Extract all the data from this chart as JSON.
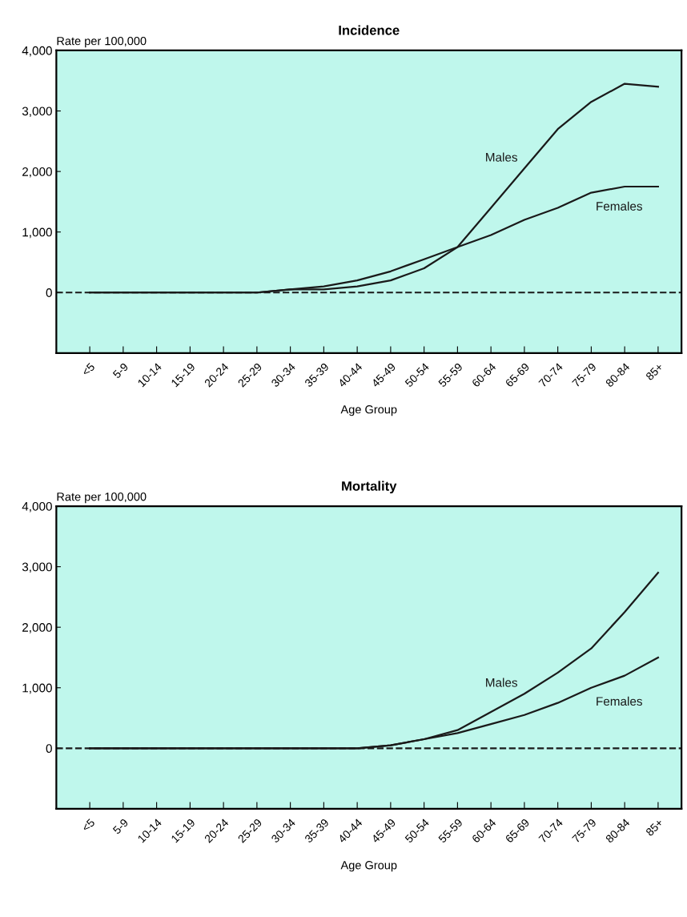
{
  "chart_data": [
    {
      "type": "line",
      "title": "Incidence",
      "ylabel": "Rate per 100,000",
      "xlabel": "Age Group",
      "categories": [
        "<5",
        "5-9",
        "10-14",
        "15-19",
        "20-24",
        "25-29",
        "30-34",
        "35-39",
        "40-44",
        "45-49",
        "50-54",
        "55-59",
        "60-64",
        "65-69",
        "70-74",
        "75-79",
        "80-84",
        "85+"
      ],
      "series": [
        {
          "name": "Males",
          "color": "#1a1a1a",
          "values": [
            0,
            0,
            0,
            0,
            0,
            0,
            50,
            50,
            100,
            200,
            400,
            750,
            1400,
            2050,
            2700,
            3150,
            3450,
            3400
          ]
        },
        {
          "name": "Females",
          "color": "#1a1a1a",
          "values": [
            0,
            0,
            0,
            0,
            0,
            0,
            50,
            100,
            200,
            350,
            550,
            750,
            950,
            1200,
            1400,
            1650,
            1750,
            1750
          ]
        }
      ],
      "ylim": [
        -1000,
        4000
      ],
      "yticks": [
        {
          "value": 0,
          "label": "0"
        },
        {
          "value": 1000,
          "label": "1,000"
        },
        {
          "value": 2000,
          "label": "2,000"
        },
        {
          "value": 3000,
          "label": "3,000"
        },
        {
          "value": 4000,
          "label": "4,000"
        }
      ],
      "ref_lines": [
        {
          "axis": "y",
          "value": 0,
          "label": null,
          "color": "#1a1a1a",
          "line_style": "dashed"
        }
      ],
      "grid": false,
      "legend": false,
      "marker": "none",
      "line_style": "solid"
    },
    {
      "type": "line",
      "title": "Mortality",
      "ylabel": "Rate per 100,000",
      "xlabel": "Age Group",
      "categories": [
        "<5",
        "5-9",
        "10-14",
        "15-19",
        "20-24",
        "25-29",
        "30-34",
        "35-39",
        "40-44",
        "45-49",
        "50-54",
        "55-59",
        "60-64",
        "65-69",
        "70-74",
        "75-79",
        "80-84",
        "85+"
      ],
      "series": [
        {
          "name": "Males",
          "color": "#1a1a1a",
          "values": [
            0,
            0,
            0,
            0,
            0,
            0,
            0,
            0,
            0,
            50,
            150,
            300,
            600,
            900,
            1250,
            1650,
            2250,
            2900
          ]
        },
        {
          "name": "Females",
          "color": "#1a1a1a",
          "values": [
            0,
            0,
            0,
            0,
            0,
            0,
            0,
            0,
            0,
            50,
            150,
            250,
            400,
            550,
            750,
            1000,
            1200,
            1500
          ]
        }
      ],
      "ylim": [
        -1000,
        4000
      ],
      "yticks": [
        {
          "value": 0,
          "label": "0"
        },
        {
          "value": 1000,
          "label": "1,000"
        },
        {
          "value": 2000,
          "label": "2,000"
        },
        {
          "value": 3000,
          "label": "3,000"
        },
        {
          "value": 4000,
          "label": "4,000"
        }
      ],
      "ref_lines": [
        {
          "axis": "y",
          "value": 0,
          "label": null,
          "color": "#1a1a1a",
          "line_style": "dashed"
        }
      ],
      "grid": false,
      "legend": false,
      "marker": "none",
      "line_style": "solid"
    }
  ]
}
